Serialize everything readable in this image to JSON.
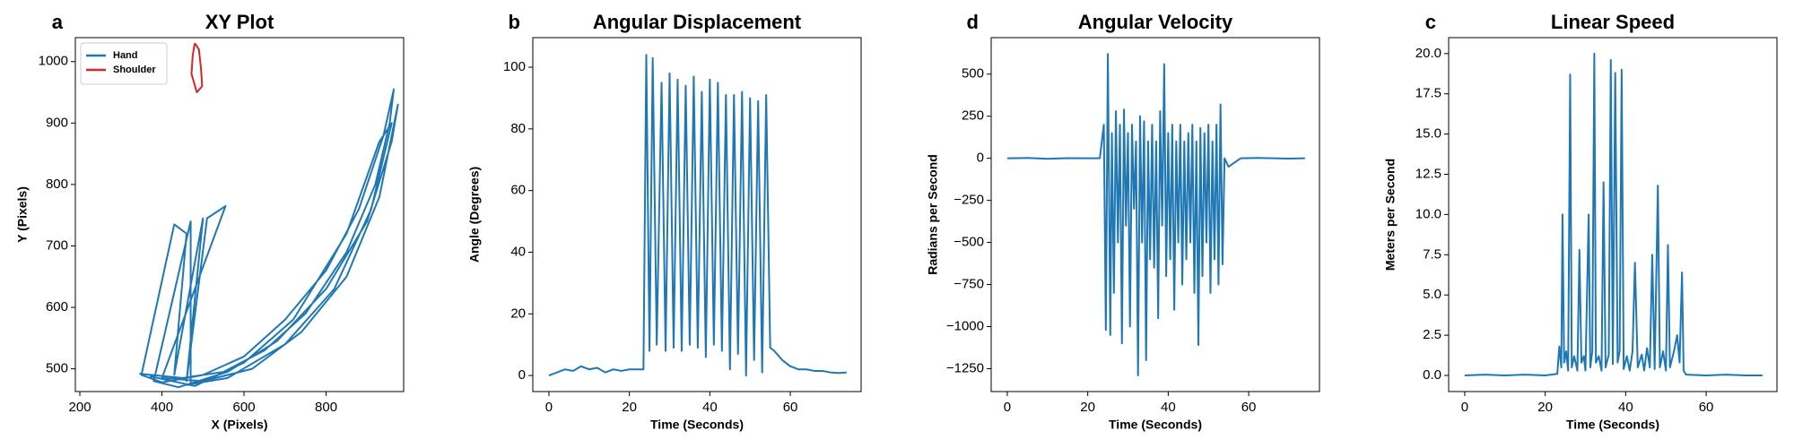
{
  "chart_data": [
    {
      "type": "line",
      "panel_label": "a",
      "title": "XY Plot",
      "xlabel": "X (Pixels)",
      "ylabel": "Y (Pixels)",
      "xlim": [
        189,
        989
      ],
      "ylim": [
        463,
        1039
      ],
      "xticks": [
        200,
        400,
        600,
        800
      ],
      "yticks": [
        500,
        600,
        700,
        800,
        900,
        1000
      ],
      "legend": "upper left",
      "series": [
        {
          "name": "Hand",
          "color": "#1f77b4",
          "x": [
            345,
            450,
            550,
            650,
            750,
            850,
            920,
            955,
            965,
            940,
            880,
            800,
            700,
            600,
            500,
            400,
            350,
            430,
            460,
            430,
            500,
            460,
            510,
            555,
            400,
            500,
            620,
            740,
            850,
            930,
            975,
            960,
            900,
            800,
            680,
            560,
            440,
            380,
            470,
            470,
            560,
            700,
            820,
            910,
            960,
            930,
            850,
            720,
            600,
            480,
            370
          ],
          "values": [
            492,
            485,
            495,
            530,
            590,
            690,
            800,
            900,
            955,
            880,
            760,
            660,
            580,
            520,
            490,
            478,
            490,
            735,
            720,
            490,
            745,
            480,
            745,
            765,
            485,
            480,
            500,
            560,
            650,
            780,
            930,
            870,
            740,
            630,
            545,
            495,
            470,
            480,
            740,
            475,
            485,
            540,
            630,
            760,
            900,
            870,
            720,
            580,
            510,
            472,
            488
          ]
        },
        {
          "name": "Shoulder",
          "color": "#d62728",
          "x": [
            480,
            490,
            495,
            498,
            485,
            472,
            475,
            480
          ],
          "values": [
            1030,
            1020,
            990,
            960,
            950,
            980,
            1010,
            1030
          ]
        }
      ]
    },
    {
      "type": "line",
      "panel_label": "b",
      "title": "Angular Displacement",
      "xlabel": "Time (Seconds)",
      "ylabel": "Angle (Degrees)",
      "xlim": [
        -4,
        77.6
      ],
      "ylim": [
        -5.2,
        109.6
      ],
      "xticks": [
        0,
        20,
        40,
        60
      ],
      "yticks": [
        0,
        20,
        40,
        60,
        80,
        100
      ],
      "color": "#1f77b4",
      "x": [
        0,
        2,
        4,
        6,
        8,
        10,
        12,
        14,
        16,
        18,
        20,
        22,
        23.5,
        24.2,
        25,
        25.8,
        26.8,
        28,
        29,
        30,
        31,
        32,
        33,
        34,
        35,
        36,
        37,
        38,
        39,
        40,
        41,
        42,
        43,
        44,
        45,
        46,
        47,
        48,
        49,
        50,
        51,
        52,
        53,
        54,
        55,
        56,
        58,
        60,
        62,
        64,
        66,
        68,
        70,
        72,
        74
      ],
      "values": [
        0,
        1,
        2,
        1.5,
        3,
        2,
        2.5,
        1,
        2,
        1.5,
        2,
        2,
        2,
        104,
        8,
        103,
        10,
        95,
        8,
        98,
        9,
        96,
        8,
        94,
        10,
        97,
        9,
        92,
        6,
        96,
        10,
        95,
        8,
        91,
        2,
        91,
        7,
        92,
        0,
        90,
        5,
        89,
        1,
        91,
        9,
        8,
        5,
        3,
        2,
        2,
        1.5,
        1.5,
        1,
        0.8,
        1
      ]
    },
    {
      "type": "line",
      "panel_label": "d",
      "title": "Angular Velocity",
      "xlabel": "Time (Seconds)",
      "ylabel": "Radians per Second",
      "xlim": [
        -4,
        77.6
      ],
      "ylim": [
        -1386,
        717
      ],
      "xticks": [
        0,
        20,
        40,
        60
      ],
      "yticks": [
        {
          "value": -1250,
          "label": "−1250"
        },
        {
          "value": -1000,
          "label": "−1000"
        },
        {
          "value": -750,
          "label": "−750"
        },
        {
          "value": -500,
          "label": "−500"
        },
        {
          "value": -250,
          "label": "−250"
        },
        0,
        250,
        500
      ],
      "color": "#1f77b4",
      "x": [
        0,
        5,
        10,
        15,
        20,
        23,
        23.5,
        24,
        24.5,
        25,
        25.3,
        25.6,
        26,
        26.5,
        27,
        27.5,
        28,
        28.5,
        29,
        29.5,
        30,
        30.5,
        31,
        31.5,
        32,
        32.5,
        33,
        33.5,
        34,
        34.5,
        35,
        35.5,
        36,
        36.5,
        37,
        37.5,
        38,
        38.5,
        39,
        39.5,
        40,
        40.5,
        41,
        41.5,
        42,
        42.5,
        43,
        43.5,
        44,
        44.5,
        45,
        45.5,
        46,
        46.5,
        47,
        47.5,
        48,
        48.5,
        49,
        49.5,
        50,
        50.5,
        51,
        51.5,
        52,
        52.5,
        53,
        53.5,
        54,
        55,
        58,
        62,
        66,
        70,
        74
      ],
      "values": [
        0,
        2,
        -3,
        1,
        0,
        0,
        100,
        200,
        -1020,
        620,
        -200,
        -1050,
        150,
        -800,
        280,
        -500,
        200,
        -1100,
        290,
        -400,
        150,
        -1000,
        200,
        -300,
        100,
        -1290,
        250,
        -500,
        220,
        -1200,
        100,
        -600,
        200,
        -650,
        100,
        -950,
        280,
        -400,
        560,
        -700,
        150,
        -600,
        200,
        -900,
        100,
        -500,
        200,
        -750,
        100,
        -600,
        150,
        -500,
        200,
        -800,
        100,
        -1110,
        180,
        -700,
        150,
        -500,
        200,
        -800,
        100,
        -600,
        200,
        -750,
        320,
        -630,
        0,
        -50,
        0,
        2,
        0,
        -2,
        0
      ]
    },
    {
      "type": "line",
      "panel_label": "c",
      "title": "Linear Speed",
      "xlabel": "Time (Seconds)",
      "ylabel": "Meters per Second",
      "xlim": [
        -4,
        77.6
      ],
      "ylim": [
        -1.0,
        20.99
      ],
      "xticks": [
        0,
        20,
        40,
        60
      ],
      "yticks": [
        {
          "value": 0,
          "label": "0.0"
        },
        {
          "value": 2.5,
          "label": "2.5"
        },
        {
          "value": 5,
          "label": "5.0"
        },
        {
          "value": 7.5,
          "label": "7.5"
        },
        {
          "value": 10,
          "label": "10.0"
        },
        {
          "value": 12.5,
          "label": "12.5"
        },
        {
          "value": 15,
          "label": "15.0"
        },
        {
          "value": 17.5,
          "label": "17.5"
        },
        {
          "value": 20,
          "label": "20.0"
        }
      ],
      "color": "#1f77b4",
      "x": [
        0,
        5,
        10,
        15,
        20,
        23,
        23.5,
        24,
        24.3,
        24.7,
        25.2,
        25.7,
        26.2,
        26.6,
        27.2,
        28,
        28.5,
        29,
        29.6,
        30,
        30.8,
        31.2,
        31.7,
        32.2,
        32.6,
        33.3,
        34,
        34.5,
        35,
        35.8,
        36.3,
        36.8,
        37.4,
        38,
        38.5,
        39,
        39.5,
        40.3,
        41,
        41.7,
        42.3,
        43,
        44,
        44.6,
        45.3,
        46,
        46.6,
        47.2,
        48,
        48.5,
        49.3,
        50,
        50.5,
        51,
        52,
        52.8,
        53.4,
        54,
        54.4,
        55,
        60,
        65,
        70,
        74
      ],
      "values": [
        0,
        0.05,
        0,
        0.05,
        0,
        0.1,
        1.8,
        0.5,
        10,
        0.8,
        1.5,
        0.3,
        18.7,
        0.5,
        1.2,
        0.3,
        7.8,
        0.8,
        1.2,
        0.3,
        10,
        0.5,
        1.5,
        20,
        0.8,
        1.2,
        0.3,
        12,
        0.5,
        1.3,
        19.6,
        0.7,
        18.8,
        0.8,
        1.5,
        19,
        0.4,
        1.2,
        0.3,
        1.5,
        7,
        0.5,
        1.3,
        0.3,
        1.7,
        0.5,
        7.5,
        0.4,
        11.8,
        0.5,
        1.5,
        0.3,
        8.1,
        0.5,
        1.5,
        2.5,
        0.8,
        6.4,
        0.3,
        0.05,
        0,
        0.05,
        0,
        0
      ]
    }
  ]
}
